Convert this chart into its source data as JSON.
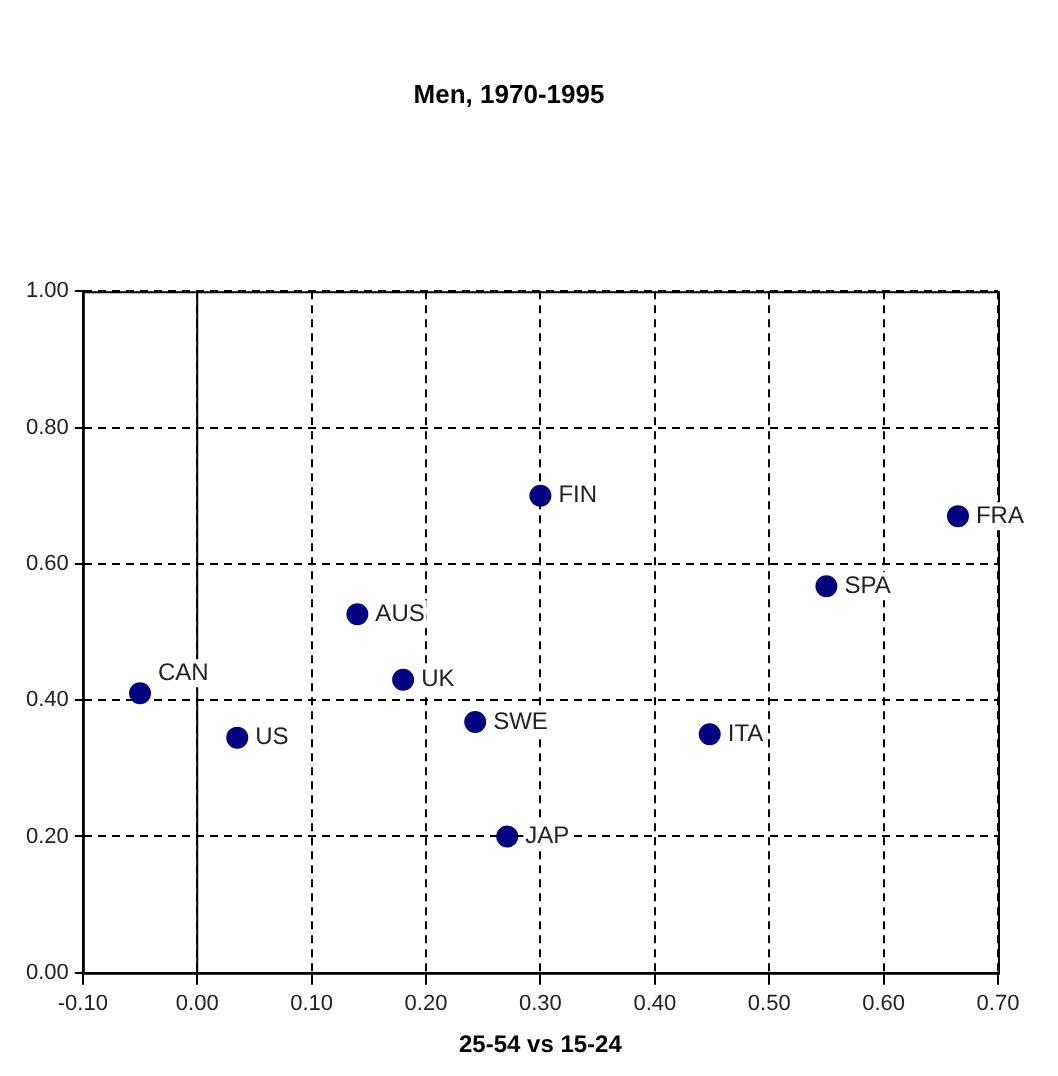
{
  "chart_data": {
    "type": "scatter",
    "title": "Men, 1970-1995",
    "xlabel": "25-54 vs 15-24",
    "x": [
      -0.05,
      0.035,
      0.14,
      0.18,
      0.243,
      0.271,
      0.3,
      0.448,
      0.55,
      0.665
    ],
    "series": [
      {
        "color": "#000080",
        "values": [
          0.41,
          0.345,
          0.526,
          0.43,
          0.368,
          0.2,
          0.7,
          0.35,
          0.567,
          0.67
        ]
      }
    ],
    "xlim": [
      -0.1,
      0.7
    ],
    "xticks": [
      {
        "value": -0.1,
        "label": "-0.10"
      },
      {
        "value": 0,
        "label": "0.00"
      },
      {
        "value": 0.1,
        "label": "0.10"
      },
      {
        "value": 0.2,
        "label": "0.20"
      },
      {
        "value": 0.3,
        "label": "0.30"
      },
      {
        "value": 0.4,
        "label": "0.40"
      },
      {
        "value": 0.5,
        "label": "0.50"
      },
      {
        "value": 0.6,
        "label": "0.60"
      },
      {
        "value": 0.7,
        "label": "0.70"
      }
    ],
    "ylim": [
      0,
      1
    ],
    "yticks": [
      {
        "value": 0,
        "label": "0.00"
      },
      {
        "value": 0.2,
        "label": "0.20"
      },
      {
        "value": 0.4,
        "label": "0.40"
      },
      {
        "value": 0.6,
        "label": "0.60"
      },
      {
        "value": 0.8,
        "label": "0.80"
      },
      {
        "value": 1,
        "label": "1.00"
      }
    ],
    "grid": true,
    "legend": false,
    "marker": "circle",
    "annotations": [
      {
        "text": "CAN",
        "x": -0.05,
        "y": 0.41
      },
      {
        "text": "US",
        "x": 0.035,
        "y": 0.345
      },
      {
        "text": "AUS",
        "x": 0.14,
        "y": 0.526
      },
      {
        "text": "UK",
        "x": 0.18,
        "y": 0.43
      },
      {
        "text": "SWE",
        "x": 0.243,
        "y": 0.368
      },
      {
        "text": "JAP",
        "x": 0.271,
        "y": 0.2
      },
      {
        "text": "FIN",
        "x": 0.3,
        "y": 0.7
      },
      {
        "text": "ITA",
        "x": 0.448,
        "y": 0.35
      },
      {
        "text": "SPA",
        "x": 0.55,
        "y": 0.567
      },
      {
        "text": "FRA",
        "x": 0.665,
        "y": 0.67
      }
    ]
  }
}
